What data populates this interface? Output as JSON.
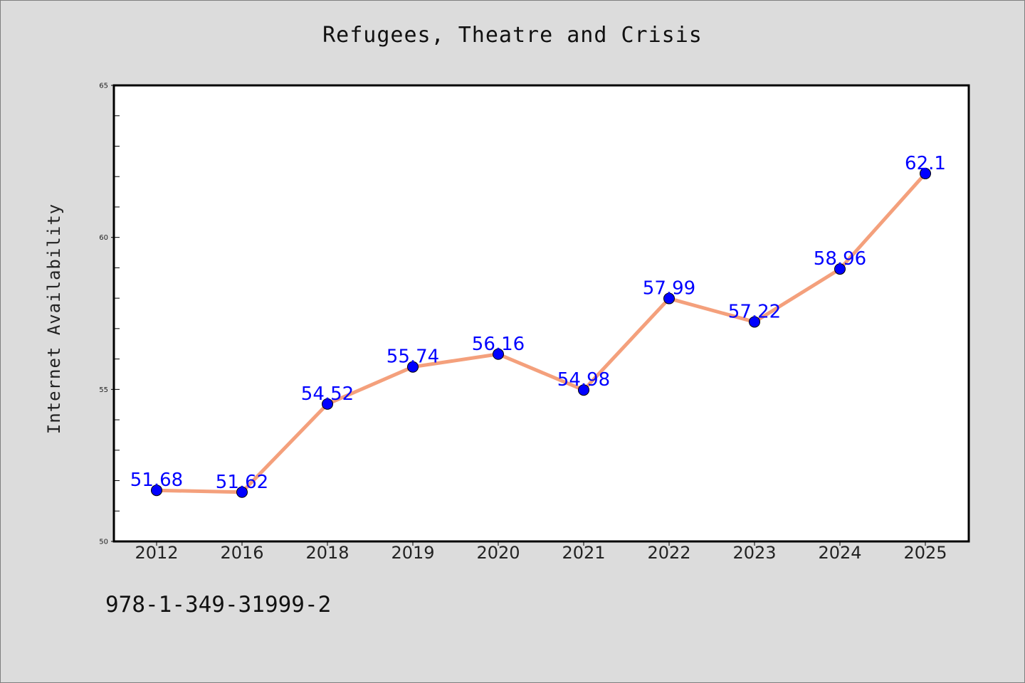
{
  "title": "Refugees, Theatre and Crisis",
  "footer_code": "978-1-349-31999-2",
  "chart_data": {
    "type": "line",
    "title": "Refugees, Theatre and Crisis",
    "xlabel": "",
    "ylabel": "Internet Availability",
    "categories": [
      "2012",
      "2016",
      "2018",
      "2019",
      "2020",
      "2021",
      "2022",
      "2023",
      "2024",
      "2025"
    ],
    "series": [
      {
        "values": [
          51.68,
          51.62,
          54.52,
          55.74,
          56.16,
          54.98,
          57.99,
          57.22,
          58.96,
          62.1
        ],
        "line_color": "#f4a07c",
        "marker_color": "#0000ff"
      }
    ],
    "data_labels": [
      "51.68",
      "51.62",
      "54.52",
      "55.74",
      "56.16",
      "54.98",
      "57.99",
      "57.22",
      "58.96",
      "62.1"
    ],
    "ylim": [
      50,
      65
    ],
    "yticks": [
      "50",
      "55",
      "60",
      "65"
    ],
    "grid": false,
    "legend": "none"
  }
}
